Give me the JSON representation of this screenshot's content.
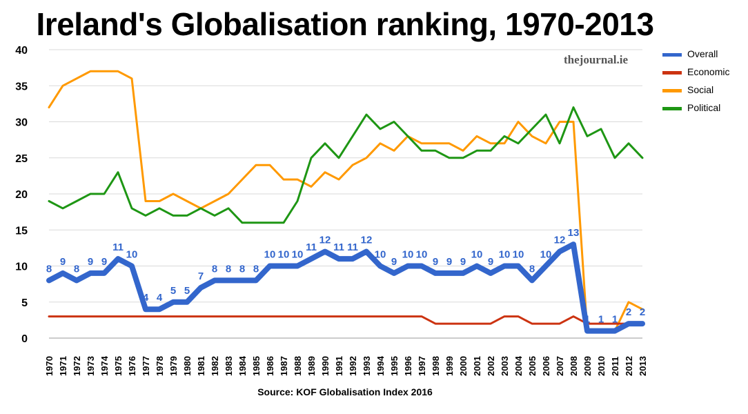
{
  "page": {
    "title": "Ireland's Globalisation ranking, 1970-2013",
    "watermark": "thejournal.ie",
    "source": "Source: KOF Globalisation Index 2016"
  },
  "chart_data": {
    "type": "line",
    "title": "Ireland's Globalisation ranking, 1970-2013",
    "xlabel": "",
    "ylabel": "",
    "ylim": [
      0,
      40
    ],
    "yticks": [
      0,
      5,
      10,
      15,
      20,
      25,
      30,
      35,
      40
    ],
    "grid": true,
    "legend_position": "right",
    "x": [
      1970,
      1971,
      1972,
      1973,
      1974,
      1975,
      1976,
      1977,
      1978,
      1979,
      1980,
      1981,
      1982,
      1983,
      1984,
      1985,
      1986,
      1987,
      1988,
      1989,
      1990,
      1991,
      1992,
      1993,
      1994,
      1995,
      1996,
      1997,
      1998,
      1999,
      2000,
      2001,
      2002,
      2003,
      2004,
      2005,
      2006,
      2007,
      2008,
      2009,
      2010,
      2011,
      2012,
      2013
    ],
    "series": [
      {
        "name": "Overall",
        "color": "#3366cc",
        "labeled": true,
        "values": [
          8,
          9,
          8,
          9,
          9,
          11,
          10,
          4,
          4,
          5,
          5,
          7,
          8,
          8,
          8,
          8,
          10,
          10,
          10,
          11,
          12,
          11,
          11,
          12,
          10,
          9,
          10,
          10,
          9,
          9,
          9,
          10,
          9,
          10,
          10,
          8,
          10,
          12,
          13,
          1,
          1,
          1,
          2,
          2
        ]
      },
      {
        "name": "Economic",
        "color": "#cc3311",
        "values": [
          3,
          3,
          3,
          3,
          3,
          3,
          3,
          3,
          3,
          3,
          3,
          3,
          3,
          3,
          3,
          3,
          3,
          3,
          3,
          3,
          3,
          3,
          3,
          3,
          3,
          3,
          3,
          3,
          2,
          2,
          2,
          2,
          2,
          3,
          3,
          2,
          2,
          2,
          3,
          2,
          2,
          2,
          2,
          2
        ]
      },
      {
        "name": "Social",
        "color": "#ff9900",
        "values": [
          32,
          35,
          36,
          37,
          37,
          37,
          36,
          19,
          19,
          20,
          19,
          18,
          19,
          20,
          22,
          24,
          24,
          22,
          22,
          21,
          23,
          22,
          24,
          25,
          27,
          26,
          28,
          27,
          27,
          27,
          26,
          28,
          27,
          27,
          30,
          28,
          27,
          30,
          30,
          1,
          1,
          1,
          5,
          4
        ]
      },
      {
        "name": "Political",
        "color": "#1e9614",
        "values": [
          19,
          18,
          19,
          20,
          20,
          23,
          18,
          17,
          18,
          17,
          17,
          18,
          17,
          18,
          16,
          16,
          16,
          16,
          19,
          25,
          27,
          25,
          28,
          31,
          29,
          30,
          28,
          26,
          26,
          25,
          25,
          26,
          26,
          28,
          27,
          29,
          31,
          27,
          32,
          28,
          29,
          25,
          27,
          25
        ]
      }
    ]
  }
}
